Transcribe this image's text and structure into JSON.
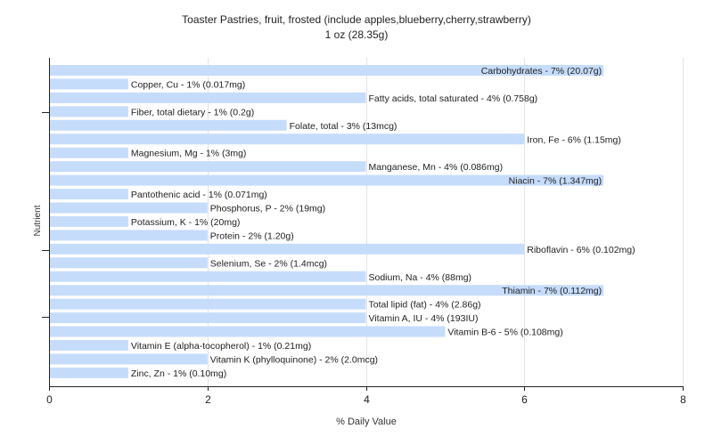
{
  "chart_data": {
    "type": "bar",
    "orientation": "horizontal",
    "title": "Toaster Pastries, fruit, frosted (include apples,blueberry,cherry,strawberry)",
    "subtitle": "1 oz (28.35g)",
    "xlabel": "% Daily Value",
    "ylabel": "Nutrient",
    "xlim": [
      0,
      8
    ],
    "xticks": [
      0,
      2,
      4,
      6,
      8
    ],
    "grid": "vertical",
    "bar_color": "#c6dcfb",
    "categories": [
      "Carbohydrates",
      "Copper, Cu",
      "Fatty acids, total saturated",
      "Fiber, total dietary",
      "Folate, total",
      "Iron, Fe",
      "Magnesium, Mg",
      "Manganese, Mn",
      "Niacin",
      "Pantothenic acid",
      "Phosphorus, P",
      "Potassium, K",
      "Protein",
      "Riboflavin",
      "Selenium, Se",
      "Sodium, Na",
      "Thiamin",
      "Total lipid (fat)",
      "Vitamin A, IU",
      "Vitamin B-6",
      "Vitamin E (alpha-tocopherol)",
      "Vitamin K (phylloquinone)",
      "Zinc, Zn"
    ],
    "values": [
      7,
      1,
      4,
      1,
      3,
      6,
      1,
      4,
      7,
      1,
      2,
      1,
      2,
      6,
      2,
      4,
      7,
      4,
      4,
      5,
      1,
      2,
      1
    ],
    "labels": [
      "Carbohydrates - 7% (20.07g)",
      "Copper, Cu - 1% (0.017mg)",
      "Fatty acids, total saturated - 4% (0.758g)",
      "Fiber, total dietary - 1% (0.2g)",
      "Folate, total - 3% (13mcg)",
      "Iron, Fe - 6% (1.15mg)",
      "Magnesium, Mg - 1% (3mg)",
      "Manganese, Mn - 4% (0.086mg)",
      "Niacin - 7% (1.347mg)",
      "Pantothenic acid - 1% (0.071mg)",
      "Phosphorus, P - 2% (19mg)",
      "Potassium, K - 1% (20mg)",
      "Protein - 2% (1.20g)",
      "Riboflavin - 6% (0.102mg)",
      "Selenium, Se - 2% (1.4mcg)",
      "Sodium, Na - 4% (88mg)",
      "Thiamin - 7% (0.112mg)",
      "Total lipid (fat) - 4% (2.86g)",
      "Vitamin A, IU - 4% (193IU)",
      "Vitamin B-6 - 5% (0.108mg)",
      "Vitamin E (alpha-tocopherol) - 1% (0.21mg)",
      "Vitamin K (phylloquinone) - 2% (2.0mcg)",
      "Zinc, Zn - 1% (0.10mg)"
    ]
  }
}
